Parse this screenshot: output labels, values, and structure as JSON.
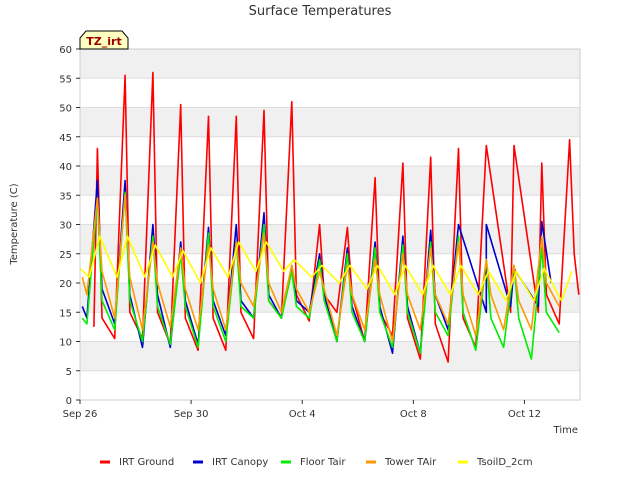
{
  "chart_data": {
    "type": "line",
    "title": "Surface Temperatures",
    "badge": "TZ_irt",
    "xlabel": "Time",
    "ylabel": "Temperature (C)",
    "ylim": [
      0,
      60
    ],
    "yticks": [
      0,
      5,
      10,
      15,
      20,
      25,
      30,
      35,
      40,
      45,
      50,
      55,
      60
    ],
    "xlim": [
      "2023-09-26",
      "2023-10-14"
    ],
    "xticks": [
      {
        "date": "2023-09-26",
        "label": "Sep 26"
      },
      {
        "date": "2023-09-30",
        "label": "Sep 30"
      },
      {
        "date": "2023-10-04",
        "label": "Oct 4"
      },
      {
        "date": "2023-10-08",
        "label": "Oct 8"
      },
      {
        "date": "2023-10-12",
        "label": "Oct 12"
      }
    ],
    "grid": true,
    "legend_position": "bottom",
    "series": [
      {
        "name": "IRT Ground",
        "color": "#ff0000",
        "points": [
          [
            "2023-09-26T12:00",
            12.5
          ],
          [
            "2023-09-26T15:00",
            43
          ],
          [
            "2023-09-26T19:00",
            14
          ],
          [
            "2023-09-27T06:00",
            10.5
          ],
          [
            "2023-09-27T15:00",
            55.5
          ],
          [
            "2023-09-27T19:00",
            15
          ],
          [
            "2023-09-28T06:00",
            10.5
          ],
          [
            "2023-09-28T15:00",
            56
          ],
          [
            "2023-09-28T19:00",
            15
          ],
          [
            "2023-09-29T06:00",
            9.5
          ],
          [
            "2023-09-29T15:00",
            50.5
          ],
          [
            "2023-09-29T19:00",
            14
          ],
          [
            "2023-09-30T06:00",
            8.5
          ],
          [
            "2023-09-30T15:00",
            48.5
          ],
          [
            "2023-09-30T19:00",
            14
          ],
          [
            "2023-10-01T06:00",
            8.5
          ],
          [
            "2023-10-01T15:00",
            48.5
          ],
          [
            "2023-10-01T19:00",
            15
          ],
          [
            "2023-10-02T06:00",
            10.5
          ],
          [
            "2023-10-02T15:00",
            49.5
          ],
          [
            "2023-10-02T19:00",
            17
          ],
          [
            "2023-10-03T06:00",
            14
          ],
          [
            "2023-10-03T15:00",
            51
          ],
          [
            "2023-10-03T19:00",
            18
          ],
          [
            "2023-10-04T06:00",
            13.5
          ],
          [
            "2023-10-04T15:00",
            30
          ],
          [
            "2023-10-04T19:00",
            18
          ],
          [
            "2023-10-05T06:00",
            15
          ],
          [
            "2023-10-05T15:00",
            29.5
          ],
          [
            "2023-10-05T19:00",
            18
          ],
          [
            "2023-10-06T06:00",
            10
          ],
          [
            "2023-10-06T15:00",
            38
          ],
          [
            "2023-10-06T19:00",
            15
          ],
          [
            "2023-10-07T06:00",
            11
          ],
          [
            "2023-10-07T15:00",
            40.5
          ],
          [
            "2023-10-07T19:00",
            14
          ],
          [
            "2023-10-08T06:00",
            7
          ],
          [
            "2023-10-08T15:00",
            41.5
          ],
          [
            "2023-10-08T19:00",
            13
          ],
          [
            "2023-10-09T06:00",
            6.5
          ],
          [
            "2023-10-09T15:00",
            43
          ],
          [
            "2023-10-09T19:00",
            14
          ],
          [
            "2023-10-10T06:00",
            9
          ],
          [
            "2023-10-10T15:00",
            43.5
          ],
          [
            "2023-10-11T12:00",
            15
          ],
          [
            "2023-10-11T15:00",
            43.5
          ],
          [
            "2023-10-12T12:00",
            15
          ],
          [
            "2023-10-12T15:00",
            40.5
          ],
          [
            "2023-10-12T19:00",
            18
          ],
          [
            "2023-10-13T06:00",
            13
          ],
          [
            "2023-10-13T15:00",
            44.5
          ],
          [
            "2023-10-13T19:00",
            25
          ],
          [
            "2023-10-13T23:00",
            18
          ]
        ]
      },
      {
        "name": "IRT Canopy",
        "color": "#0000cc",
        "points": [
          [
            "2023-09-26T02:00",
            16
          ],
          [
            "2023-09-26T06:00",
            14
          ],
          [
            "2023-09-26T15:00",
            37.5
          ],
          [
            "2023-09-26T19:00",
            19
          ],
          [
            "2023-09-27T06:00",
            13
          ],
          [
            "2023-09-27T15:00",
            37.5
          ],
          [
            "2023-09-27T19:00",
            18
          ],
          [
            "2023-09-28T06:00",
            9
          ],
          [
            "2023-09-28T15:00",
            30
          ],
          [
            "2023-09-28T19:00",
            18
          ],
          [
            "2023-09-29T06:00",
            9
          ],
          [
            "2023-09-29T15:00",
            27
          ],
          [
            "2023-09-29T19:00",
            17
          ],
          [
            "2023-09-30T06:00",
            9.5
          ],
          [
            "2023-09-30T15:00",
            29.5
          ],
          [
            "2023-09-30T19:00",
            17
          ],
          [
            "2023-10-01T06:00",
            11
          ],
          [
            "2023-10-01T15:00",
            30
          ],
          [
            "2023-10-01T19:00",
            17
          ],
          [
            "2023-10-02T06:00",
            14
          ],
          [
            "2023-10-02T15:00",
            32
          ],
          [
            "2023-10-02T19:00",
            18
          ],
          [
            "2023-10-03T06:00",
            14
          ],
          [
            "2023-10-03T15:00",
            23
          ],
          [
            "2023-10-03T19:00",
            17
          ],
          [
            "2023-10-04T06:00",
            15
          ],
          [
            "2023-10-04T15:00",
            25
          ],
          [
            "2023-10-04T19:00",
            18
          ],
          [
            "2023-10-05T06:00",
            10
          ],
          [
            "2023-10-05T15:00",
            26
          ],
          [
            "2023-10-05T19:00",
            16
          ],
          [
            "2023-10-06T06:00",
            10
          ],
          [
            "2023-10-06T15:00",
            27
          ],
          [
            "2023-10-06T19:00",
            16
          ],
          [
            "2023-10-07T06:00",
            8
          ],
          [
            "2023-10-07T15:00",
            28
          ],
          [
            "2023-10-07T19:00",
            16
          ],
          [
            "2023-10-08T06:00",
            8
          ],
          [
            "2023-10-08T15:00",
            29
          ],
          [
            "2023-10-08T19:00",
            18
          ],
          [
            "2023-10-09T06:00",
            12
          ],
          [
            "2023-10-09T15:00",
            30
          ],
          [
            "2023-10-10T15:00",
            15
          ],
          [
            "2023-10-10T15:00",
            30
          ],
          [
            "2023-10-11T12:00",
            16
          ],
          [
            "2023-10-11T15:00",
            22.5
          ],
          [
            "2023-10-12T12:00",
            16
          ],
          [
            "2023-10-12T15:00",
            30.5
          ],
          [
            "2023-10-12T23:00",
            20
          ]
        ]
      },
      {
        "name": "Floor Tair",
        "color": "#00ee00",
        "points": [
          [
            "2023-09-26T02:00",
            14
          ],
          [
            "2023-09-26T06:00",
            13
          ],
          [
            "2023-09-26T15:00",
            34.5
          ],
          [
            "2023-09-26T19:00",
            17
          ],
          [
            "2023-09-27T06:00",
            12
          ],
          [
            "2023-09-27T15:00",
            35.5
          ],
          [
            "2023-09-27T19:00",
            17
          ],
          [
            "2023-09-28T06:00",
            10
          ],
          [
            "2023-09-28T15:00",
            28
          ],
          [
            "2023-09-28T19:00",
            16
          ],
          [
            "2023-09-29T06:00",
            9.5
          ],
          [
            "2023-09-29T15:00",
            25
          ],
          [
            "2023-09-29T19:00",
            16
          ],
          [
            "2023-09-30T06:00",
            9
          ],
          [
            "2023-09-30T15:00",
            28.5
          ],
          [
            "2023-09-30T19:00",
            16
          ],
          [
            "2023-10-01T06:00",
            10
          ],
          [
            "2023-10-01T15:00",
            27
          ],
          [
            "2023-10-01T19:00",
            16
          ],
          [
            "2023-10-02T06:00",
            14
          ],
          [
            "2023-10-02T15:00",
            30
          ],
          [
            "2023-10-02T19:00",
            17
          ],
          [
            "2023-10-03T06:00",
            14
          ],
          [
            "2023-10-03T15:00",
            22
          ],
          [
            "2023-10-03T19:00",
            16
          ],
          [
            "2023-10-04T06:00",
            14
          ],
          [
            "2023-10-04T15:00",
            24
          ],
          [
            "2023-10-04T19:00",
            17
          ],
          [
            "2023-10-05T06:00",
            10
          ],
          [
            "2023-10-05T15:00",
            25
          ],
          [
            "2023-10-05T19:00",
            15
          ],
          [
            "2023-10-06T06:00",
            10
          ],
          [
            "2023-10-06T15:00",
            26
          ],
          [
            "2023-10-06T19:00",
            15
          ],
          [
            "2023-10-07T06:00",
            9
          ],
          [
            "2023-10-07T15:00",
            26.5
          ],
          [
            "2023-10-07T19:00",
            15
          ],
          [
            "2023-10-08T06:00",
            8
          ],
          [
            "2023-10-08T15:00",
            27
          ],
          [
            "2023-10-08T19:00",
            15
          ],
          [
            "2023-10-09T06:00",
            11
          ],
          [
            "2023-10-09T15:00",
            28
          ],
          [
            "2023-10-09T19:00",
            15
          ],
          [
            "2023-10-10T06:00",
            8.5
          ],
          [
            "2023-10-10T15:00",
            24
          ],
          [
            "2023-10-10T19:00",
            14
          ],
          [
            "2023-10-11T06:00",
            9
          ],
          [
            "2023-10-11T15:00",
            23
          ],
          [
            "2023-10-11T19:00",
            14
          ],
          [
            "2023-10-12T06:00",
            7
          ],
          [
            "2023-10-12T15:00",
            26
          ],
          [
            "2023-10-12T19:00",
            15
          ],
          [
            "2023-10-13T06:00",
            11.5
          ]
        ]
      },
      {
        "name": "Tower TAir",
        "color": "#ff9900",
        "points": [
          [
            "2023-09-26T02:00",
            21
          ],
          [
            "2023-09-26T06:00",
            18
          ],
          [
            "2023-09-26T15:00",
            34.5
          ],
          [
            "2023-09-26T19:00",
            22
          ],
          [
            "2023-09-27T06:00",
            14
          ],
          [
            "2023-09-27T15:00",
            35
          ],
          [
            "2023-09-27T19:00",
            21
          ],
          [
            "2023-09-28T06:00",
            12
          ],
          [
            "2023-09-28T15:00",
            27
          ],
          [
            "2023-09-28T19:00",
            20
          ],
          [
            "2023-09-29T06:00",
            12.5
          ],
          [
            "2023-09-29T15:00",
            26
          ],
          [
            "2023-09-29T19:00",
            19
          ],
          [
            "2023-09-30T06:00",
            12
          ],
          [
            "2023-09-30T15:00",
            26.5
          ],
          [
            "2023-09-30T19:00",
            19
          ],
          [
            "2023-10-01T06:00",
            12
          ],
          [
            "2023-10-01T15:00",
            27
          ],
          [
            "2023-10-01T19:00",
            20
          ],
          [
            "2023-10-02T06:00",
            16
          ],
          [
            "2023-10-02T15:00",
            28.5
          ],
          [
            "2023-10-02T19:00",
            20
          ],
          [
            "2023-10-03T06:00",
            15
          ],
          [
            "2023-10-03T15:00",
            23
          ],
          [
            "2023-10-03T19:00",
            19
          ],
          [
            "2023-10-04T06:00",
            15
          ],
          [
            "2023-10-04T15:00",
            22
          ],
          [
            "2023-10-04T19:00",
            19
          ],
          [
            "2023-10-05T06:00",
            11
          ],
          [
            "2023-10-05T15:00",
            23
          ],
          [
            "2023-10-05T19:00",
            18
          ],
          [
            "2023-10-06T06:00",
            12
          ],
          [
            "2023-10-06T15:00",
            24
          ],
          [
            "2023-10-06T19:00",
            18
          ],
          [
            "2023-10-07T06:00",
            10
          ],
          [
            "2023-10-07T15:00",
            25
          ],
          [
            "2023-10-07T19:00",
            18
          ],
          [
            "2023-10-08T06:00",
            12
          ],
          [
            "2023-10-08T15:00",
            26
          ],
          [
            "2023-10-08T19:00",
            18
          ],
          [
            "2023-10-09T06:00",
            13
          ],
          [
            "2023-10-09T15:00",
            27
          ],
          [
            "2023-10-09T19:00",
            18
          ],
          [
            "2023-10-10T06:00",
            11
          ],
          [
            "2023-10-10T15:00",
            24
          ],
          [
            "2023-10-10T19:00",
            18
          ],
          [
            "2023-10-11T06:00",
            12
          ],
          [
            "2023-10-11T15:00",
            23
          ],
          [
            "2023-10-11T19:00",
            17
          ],
          [
            "2023-10-12T06:00",
            12
          ],
          [
            "2023-10-12T15:00",
            28
          ],
          [
            "2023-10-12T19:00",
            20
          ],
          [
            "2023-10-13T06:00",
            16
          ]
        ]
      },
      {
        "name": "TsoilD_2cm",
        "color": "#ffff00",
        "points": [
          [
            "2023-09-26T00:00",
            22.5
          ],
          [
            "2023-09-26T08:00",
            21
          ],
          [
            "2023-09-26T17:00",
            28
          ],
          [
            "2023-09-27T08:00",
            21
          ],
          [
            "2023-09-27T17:00",
            28
          ],
          [
            "2023-09-28T08:00",
            21
          ],
          [
            "2023-09-28T17:00",
            26.5
          ],
          [
            "2023-09-29T08:00",
            21
          ],
          [
            "2023-09-29T17:00",
            25.5
          ],
          [
            "2023-09-30T08:00",
            20
          ],
          [
            "2023-09-30T17:00",
            26
          ],
          [
            "2023-10-01T08:00",
            21
          ],
          [
            "2023-10-01T17:00",
            27
          ],
          [
            "2023-10-02T08:00",
            22
          ],
          [
            "2023-10-02T17:00",
            27
          ],
          [
            "2023-10-03T08:00",
            22
          ],
          [
            "2023-10-03T17:00",
            24
          ],
          [
            "2023-10-04T08:00",
            21
          ],
          [
            "2023-10-04T17:00",
            23
          ],
          [
            "2023-10-05T08:00",
            20
          ],
          [
            "2023-10-05T17:00",
            23
          ],
          [
            "2023-10-06T08:00",
            19
          ],
          [
            "2023-10-06T17:00",
            23
          ],
          [
            "2023-10-07T08:00",
            18
          ],
          [
            "2023-10-07T17:00",
            23
          ],
          [
            "2023-10-08T08:00",
            18
          ],
          [
            "2023-10-08T17:00",
            23
          ],
          [
            "2023-10-09T08:00",
            18
          ],
          [
            "2023-10-09T17:00",
            23
          ],
          [
            "2023-10-10T08:00",
            18
          ],
          [
            "2023-10-10T17:00",
            22
          ],
          [
            "2023-10-11T08:00",
            17
          ],
          [
            "2023-10-11T17:00",
            22
          ],
          [
            "2023-10-12T08:00",
            17
          ],
          [
            "2023-10-12T17:00",
            22.5
          ],
          [
            "2023-10-13T08:00",
            17
          ],
          [
            "2023-10-13T17:00",
            22
          ]
        ]
      }
    ]
  }
}
